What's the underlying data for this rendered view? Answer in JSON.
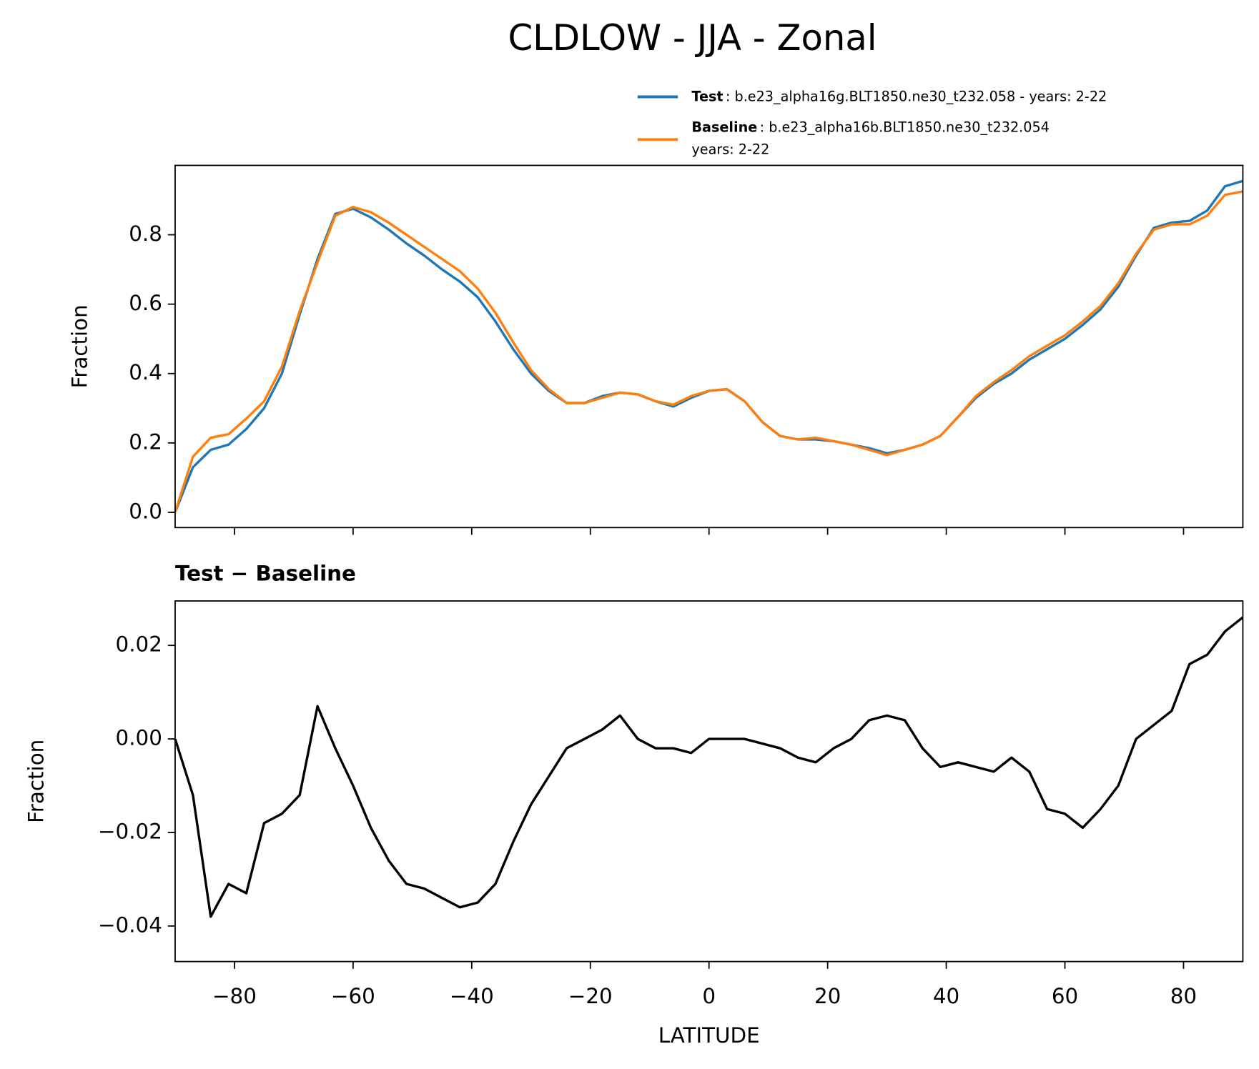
{
  "title": "CLDLOW - JJA - Zonal",
  "chart_data": [
    {
      "type": "line",
      "ylabel": "Fraction",
      "legend": "upper right",
      "xlim": [
        -90,
        90
      ],
      "ylim": [
        -0.044,
        1.0
      ],
      "xticks": [
        -80,
        -60,
        -40,
        -20,
        0,
        20,
        40,
        60,
        80
      ],
      "xtick_labels": false,
      "yticks": [
        {
          "value": 0,
          "label": "0.0"
        },
        0.2,
        0.4,
        0.6,
        0.8
      ],
      "x": [
        -90,
        -87,
        -84,
        -81,
        -78,
        -75,
        -72,
        -69,
        -66,
        -63,
        -60,
        -57,
        -54,
        -51,
        -48,
        -45,
        -42,
        -39,
        -36,
        -33,
        -30,
        -27,
        -24,
        -21,
        -18,
        -15,
        -12,
        -9,
        -6,
        -3,
        0,
        3,
        6,
        9,
        12,
        15,
        18,
        21,
        24,
        27,
        30,
        33,
        36,
        39,
        42,
        45,
        48,
        51,
        54,
        57,
        60,
        63,
        66,
        69,
        72,
        75,
        78,
        81,
        84,
        87,
        90
      ],
      "series": [
        {
          "name": "Test",
          "description": ": b.e23_alpha16g.BLT1850.ne30_t232.058 - years: 2-22",
          "color": "#1f77b4",
          "values": [
            0.0,
            0.13,
            0.18,
            0.195,
            0.24,
            0.3,
            0.4,
            0.57,
            0.73,
            0.86,
            0.875,
            0.85,
            0.815,
            0.775,
            0.74,
            0.7,
            0.665,
            0.62,
            0.55,
            0.47,
            0.4,
            0.35,
            0.315,
            0.315,
            0.335,
            0.345,
            0.34,
            0.32,
            0.305,
            0.33,
            0.35,
            0.355,
            0.32,
            0.26,
            0.22,
            0.21,
            0.21,
            0.205,
            0.195,
            0.185,
            0.17,
            0.18,
            0.195,
            0.22,
            0.275,
            0.33,
            0.37,
            0.4,
            0.44,
            0.47,
            0.5,
            0.54,
            0.585,
            0.65,
            0.74,
            0.82,
            0.835,
            0.84,
            0.87,
            0.94,
            0.955
          ]
        },
        {
          "name": "Baseline",
          "description": [
            ": b.e23_alpha16b.BLT1850.ne30_t232.054",
            "years: 2-22"
          ],
          "color": "#ff7f0e",
          "values": [
            0.0,
            0.16,
            0.215,
            0.225,
            0.27,
            0.32,
            0.42,
            0.58,
            0.72,
            0.855,
            0.88,
            0.865,
            0.835,
            0.8,
            0.765,
            0.73,
            0.695,
            0.645,
            0.575,
            0.49,
            0.41,
            0.355,
            0.315,
            0.315,
            0.33,
            0.345,
            0.34,
            0.32,
            0.31,
            0.335,
            0.35,
            0.355,
            0.32,
            0.26,
            0.22,
            0.21,
            0.215,
            0.205,
            0.195,
            0.18,
            0.165,
            0.18,
            0.195,
            0.22,
            0.275,
            0.335,
            0.375,
            0.41,
            0.45,
            0.48,
            0.51,
            0.55,
            0.595,
            0.66,
            0.745,
            0.815,
            0.83,
            0.83,
            0.855,
            0.915,
            0.925
          ]
        }
      ]
    },
    {
      "type": "line",
      "title": "Test − Baseline",
      "ylabel": "Fraction",
      "xlabel": "LATITUDE",
      "xlim": [
        -90,
        90
      ],
      "ylim": [
        -0.0476,
        0.0295
      ],
      "xticks": [
        {
          "value": -80,
          "label": "−80"
        },
        {
          "value": -60,
          "label": "−60"
        },
        {
          "value": -40,
          "label": "−40"
        },
        {
          "value": -20,
          "label": "−20"
        },
        0,
        20,
        40,
        60,
        80
      ],
      "yticks": [
        {
          "value": -0.04,
          "label": "−0.04"
        },
        {
          "value": -0.02,
          "label": "−0.02"
        },
        {
          "value": 0,
          "label": "0.00"
        },
        {
          "value": 0.02,
          "label": "0.02"
        }
      ],
      "x": [
        -90,
        -87,
        -84,
        -81,
        -78,
        -75,
        -72,
        -69,
        -66,
        -63,
        -60,
        -57,
        -54,
        -51,
        -48,
        -45,
        -42,
        -39,
        -36,
        -33,
        -30,
        -27,
        -24,
        -21,
        -18,
        -15,
        -12,
        -9,
        -6,
        -3,
        0,
        3,
        6,
        9,
        12,
        15,
        18,
        21,
        24,
        27,
        30,
        33,
        36,
        39,
        42,
        45,
        48,
        51,
        54,
        57,
        60,
        63,
        66,
        69,
        72,
        75,
        78,
        81,
        84,
        87,
        90
      ],
      "series": [
        {
          "color": "#000000",
          "values": [
            0.0,
            -0.012,
            -0.038,
            -0.031,
            -0.033,
            -0.018,
            -0.016,
            -0.012,
            0.007,
            -0.002,
            -0.01,
            -0.019,
            -0.026,
            -0.031,
            -0.032,
            -0.034,
            -0.036,
            -0.035,
            -0.031,
            -0.022,
            -0.014,
            -0.008,
            -0.002,
            0.0,
            0.002,
            0.005,
            0.0,
            -0.002,
            -0.002,
            -0.003,
            0.0,
            0.0,
            0.0,
            -0.001,
            -0.002,
            -0.004,
            -0.005,
            -0.002,
            0.0,
            0.004,
            0.005,
            0.004,
            -0.002,
            -0.006,
            -0.005,
            -0.006,
            -0.007,
            -0.004,
            -0.007,
            -0.015,
            -0.016,
            -0.019,
            -0.015,
            -0.01,
            0.0,
            0.003,
            0.006,
            0.016,
            0.018,
            0.023,
            0.026
          ]
        }
      ]
    }
  ]
}
